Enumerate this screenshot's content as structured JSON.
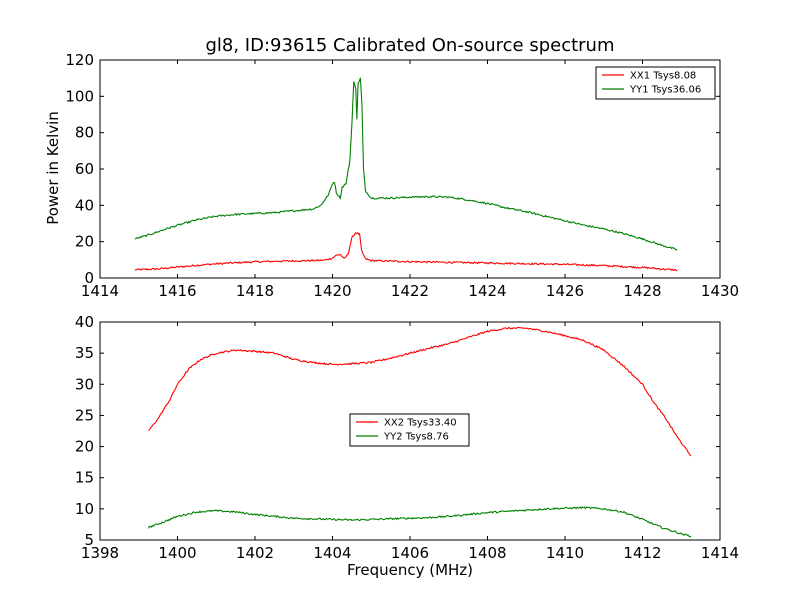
{
  "colors": {
    "red": "#ff0000",
    "green": "#008000",
    "axes": "#000000",
    "background": "#ffffff"
  },
  "chart_data": [
    {
      "type": "line",
      "title": "gl8, ID:93615 Calibrated On-source spectrum",
      "xlabel": "",
      "ylabel": "Power in Kelvin",
      "xlim": [
        1414,
        1430
      ],
      "ylim": [
        0,
        120
      ],
      "xticks": [
        1414,
        1416,
        1418,
        1420,
        1422,
        1424,
        1426,
        1428,
        1430
      ],
      "yticks": [
        0,
        20,
        40,
        60,
        80,
        100,
        120
      ],
      "grid": false,
      "legend": "top-right",
      "series": [
        {
          "name": "XX1 Tsys8.08",
          "color": "#ff0000",
          "points": [
            [
              1414.9,
              4.5
            ],
            [
              1415.5,
              5.0
            ],
            [
              1416.0,
              6.0
            ],
            [
              1416.5,
              7.0
            ],
            [
              1417.0,
              7.8
            ],
            [
              1417.5,
              8.4
            ],
            [
              1418.0,
              8.9
            ],
            [
              1418.5,
              9.2
            ],
            [
              1419.0,
              9.4
            ],
            [
              1419.5,
              9.6
            ],
            [
              1419.8,
              9.8
            ],
            [
              1420.0,
              11.0
            ],
            [
              1420.1,
              12.5
            ],
            [
              1420.2,
              13.0
            ],
            [
              1420.3,
              10.5
            ],
            [
              1420.4,
              13.0
            ],
            [
              1420.5,
              22.0
            ],
            [
              1420.6,
              25.0
            ],
            [
              1420.7,
              24.0
            ],
            [
              1420.75,
              15.0
            ],
            [
              1420.85,
              10.5
            ],
            [
              1421.0,
              9.6
            ],
            [
              1421.5,
              9.3
            ],
            [
              1422.0,
              9.0
            ],
            [
              1423.0,
              8.6
            ],
            [
              1424.0,
              8.3
            ],
            [
              1425.0,
              7.9
            ],
            [
              1426.0,
              7.5
            ],
            [
              1427.0,
              6.8
            ],
            [
              1428.0,
              5.8
            ],
            [
              1428.9,
              4.3
            ]
          ]
        },
        {
          "name": "YY1 Tsys36.06",
          "color": "#008000",
          "points": [
            [
              1414.9,
              21.5
            ],
            [
              1415.3,
              24.0
            ],
            [
              1415.7,
              27.0
            ],
            [
              1416.0,
              29.0
            ],
            [
              1416.5,
              32.0
            ],
            [
              1417.0,
              34.0
            ],
            [
              1417.5,
              35.0
            ],
            [
              1418.0,
              35.5
            ],
            [
              1418.5,
              36.0
            ],
            [
              1419.0,
              37.0
            ],
            [
              1419.5,
              38.0
            ],
            [
              1419.7,
              40.0
            ],
            [
              1419.9,
              46.0
            ],
            [
              1420.0,
              52.0
            ],
            [
              1420.05,
              53.0
            ],
            [
              1420.1,
              47.0
            ],
            [
              1420.2,
              44.0
            ],
            [
              1420.25,
              50.0
            ],
            [
              1420.35,
              52.0
            ],
            [
              1420.45,
              65.0
            ],
            [
              1420.5,
              85.0
            ],
            [
              1420.55,
              108.0
            ],
            [
              1420.6,
              104.0
            ],
            [
              1420.63,
              88.0
            ],
            [
              1420.66,
              107.0
            ],
            [
              1420.72,
              110.0
            ],
            [
              1420.76,
              95.0
            ],
            [
              1420.8,
              60.0
            ],
            [
              1420.85,
              48.0
            ],
            [
              1421.0,
              44.0
            ],
            [
              1421.5,
              44.0
            ],
            [
              1422.0,
              44.5
            ],
            [
              1422.5,
              44.8
            ],
            [
              1423.0,
              44.5
            ],
            [
              1423.5,
              43.0
            ],
            [
              1424.0,
              41.0
            ],
            [
              1424.5,
              38.5
            ],
            [
              1425.0,
              36.5
            ],
            [
              1425.5,
              34.0
            ],
            [
              1426.0,
              31.5
            ],
            [
              1426.5,
              29.0
            ],
            [
              1427.0,
              27.0
            ],
            [
              1427.5,
              24.5
            ],
            [
              1428.0,
              21.5
            ],
            [
              1428.5,
              18.0
            ],
            [
              1428.9,
              15.5
            ]
          ]
        }
      ]
    },
    {
      "type": "line",
      "title": "",
      "xlabel": "Frequency (MHz)",
      "ylabel": "",
      "xlim": [
        1398,
        1414
      ],
      "ylim": [
        5,
        40
      ],
      "xticks": [
        1398,
        1400,
        1402,
        1404,
        1406,
        1408,
        1410,
        1412,
        1414
      ],
      "yticks": [
        5,
        10,
        15,
        20,
        25,
        30,
        35,
        40
      ],
      "grid": false,
      "legend": "center",
      "series": [
        {
          "name": "XX2 Tsys33.40",
          "color": "#ff0000",
          "points": [
            [
              1399.25,
              22.5
            ],
            [
              1399.5,
              24.5
            ],
            [
              1399.8,
              27.5
            ],
            [
              1400.0,
              30.0
            ],
            [
              1400.3,
              32.5
            ],
            [
              1400.6,
              34.0
            ],
            [
              1401.0,
              35.0
            ],
            [
              1401.5,
              35.5
            ],
            [
              1402.0,
              35.3
            ],
            [
              1402.5,
              35.0
            ],
            [
              1403.0,
              34.0
            ],
            [
              1403.5,
              33.5
            ],
            [
              1404.0,
              33.2
            ],
            [
              1404.5,
              33.3
            ],
            [
              1405.0,
              33.5
            ],
            [
              1405.5,
              34.2
            ],
            [
              1406.0,
              35.0
            ],
            [
              1406.5,
              35.8
            ],
            [
              1407.0,
              36.5
            ],
            [
              1407.5,
              37.5
            ],
            [
              1408.0,
              38.5
            ],
            [
              1408.5,
              39.0
            ],
            [
              1409.0,
              39.0
            ],
            [
              1409.5,
              38.5
            ],
            [
              1410.0,
              37.8
            ],
            [
              1410.5,
              37.0
            ],
            [
              1411.0,
              35.5
            ],
            [
              1411.5,
              33.0
            ],
            [
              1412.0,
              30.0
            ],
            [
              1412.3,
              27.0
            ],
            [
              1412.6,
              24.5
            ],
            [
              1412.9,
              21.5
            ],
            [
              1413.25,
              18.5
            ]
          ]
        },
        {
          "name": "YY2 Tsys8.76",
          "color": "#008000",
          "points": [
            [
              1399.25,
              7.0
            ],
            [
              1399.6,
              7.8
            ],
            [
              1400.0,
              8.8
            ],
            [
              1400.5,
              9.5
            ],
            [
              1401.0,
              9.7
            ],
            [
              1401.5,
              9.5
            ],
            [
              1402.0,
              9.1
            ],
            [
              1402.5,
              8.8
            ],
            [
              1403.0,
              8.5
            ],
            [
              1403.5,
              8.4
            ],
            [
              1404.0,
              8.3
            ],
            [
              1404.5,
              8.2
            ],
            [
              1405.0,
              8.3
            ],
            [
              1405.5,
              8.4
            ],
            [
              1406.0,
              8.5
            ],
            [
              1406.5,
              8.6
            ],
            [
              1407.0,
              8.8
            ],
            [
              1407.5,
              9.1
            ],
            [
              1408.0,
              9.4
            ],
            [
              1408.5,
              9.6
            ],
            [
              1409.0,
              9.8
            ],
            [
              1409.5,
              10.0
            ],
            [
              1410.0,
              10.1
            ],
            [
              1410.5,
              10.2
            ],
            [
              1411.0,
              10.0
            ],
            [
              1411.5,
              9.5
            ],
            [
              1412.0,
              8.3
            ],
            [
              1412.5,
              7.0
            ],
            [
              1413.0,
              6.0
            ],
            [
              1413.25,
              5.6
            ]
          ]
        }
      ]
    }
  ]
}
